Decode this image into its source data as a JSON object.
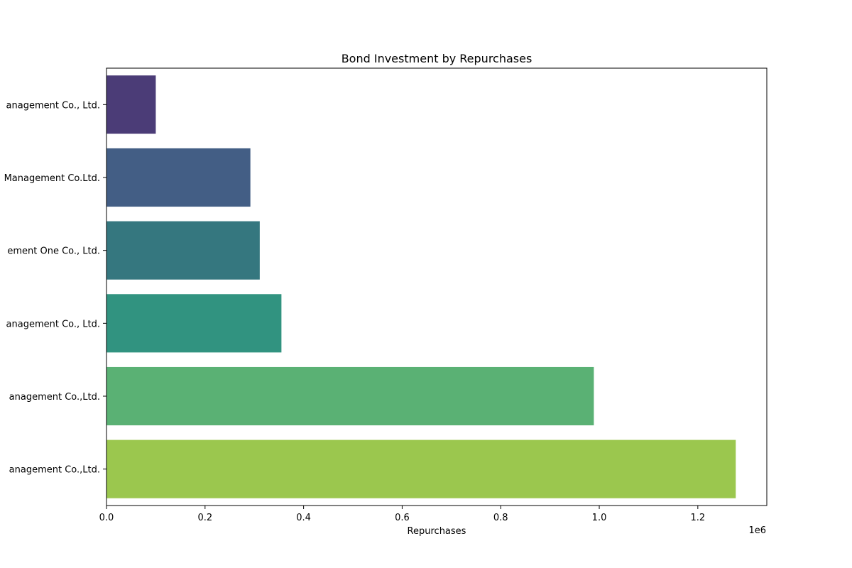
{
  "chart_data": {
    "type": "bar",
    "orientation": "horizontal",
    "title": "Bond Investment by Repurchases",
    "xlabel": "Repurchases",
    "ylabel": "",
    "x_offset_label": "1e6",
    "xlim": [
      0,
      1340000
    ],
    "x_ticks": [
      0,
      200000,
      400000,
      600000,
      800000,
      1000000,
      1200000
    ],
    "x_tick_labels": [
      "0.0",
      "0.2",
      "0.4",
      "0.6",
      "0.8",
      "1.0",
      "1.2"
    ],
    "grid": false,
    "categories": [
      "anagement Co., Ltd.",
      "Management Co.Ltd.",
      "ement One Co., Ltd.",
      "anagement Co., Ltd.",
      "anagement Co.,Ltd.",
      "anagement Co.,Ltd."
    ],
    "values": [
      100000,
      292000,
      311000,
      355000,
      989000,
      1277000
    ],
    "colors": [
      "#4b3c77",
      "#435e85",
      "#35777f",
      "#319380",
      "#5ab174",
      "#9bc74e"
    ]
  }
}
